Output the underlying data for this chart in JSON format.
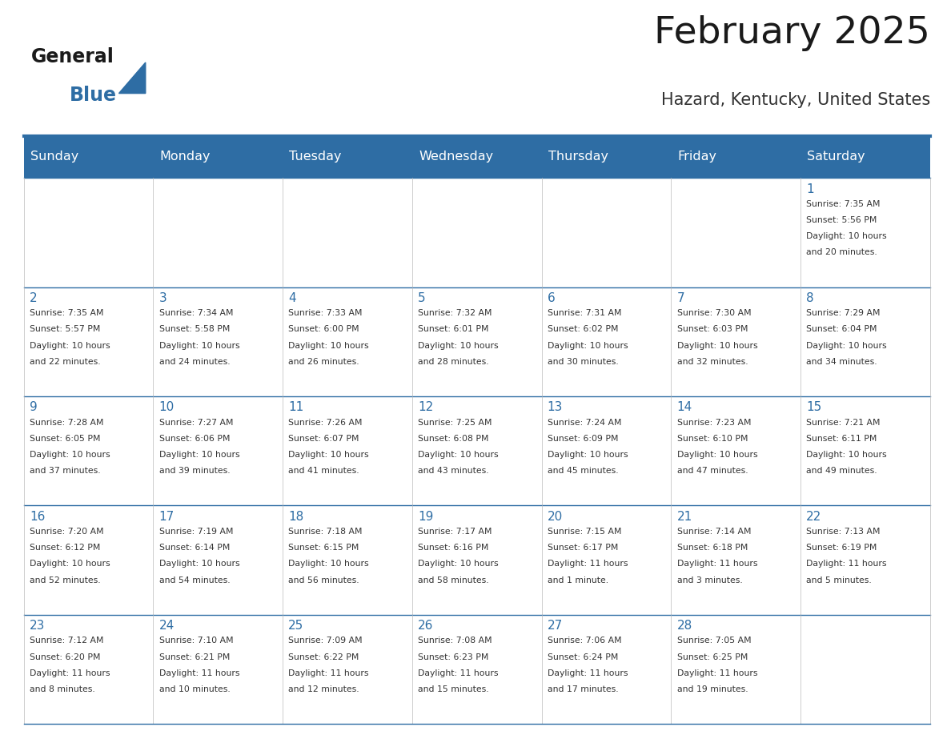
{
  "title": "February 2025",
  "subtitle": "Hazard, Kentucky, United States",
  "header_bg": "#2E6DA4",
  "header_text_color": "#FFFFFF",
  "day_number_color": "#2E6DA4",
  "text_color": "#333333",
  "border_color": "#2E6DA4",
  "days_of_week": [
    "Sunday",
    "Monday",
    "Tuesday",
    "Wednesday",
    "Thursday",
    "Friday",
    "Saturday"
  ],
  "weeks": [
    [
      {
        "day": "",
        "info": ""
      },
      {
        "day": "",
        "info": ""
      },
      {
        "day": "",
        "info": ""
      },
      {
        "day": "",
        "info": ""
      },
      {
        "day": "",
        "info": ""
      },
      {
        "day": "",
        "info": ""
      },
      {
        "day": "1",
        "info": "Sunrise: 7:35 AM\nSunset: 5:56 PM\nDaylight: 10 hours\nand 20 minutes."
      }
    ],
    [
      {
        "day": "2",
        "info": "Sunrise: 7:35 AM\nSunset: 5:57 PM\nDaylight: 10 hours\nand 22 minutes."
      },
      {
        "day": "3",
        "info": "Sunrise: 7:34 AM\nSunset: 5:58 PM\nDaylight: 10 hours\nand 24 minutes."
      },
      {
        "day": "4",
        "info": "Sunrise: 7:33 AM\nSunset: 6:00 PM\nDaylight: 10 hours\nand 26 minutes."
      },
      {
        "day": "5",
        "info": "Sunrise: 7:32 AM\nSunset: 6:01 PM\nDaylight: 10 hours\nand 28 minutes."
      },
      {
        "day": "6",
        "info": "Sunrise: 7:31 AM\nSunset: 6:02 PM\nDaylight: 10 hours\nand 30 minutes."
      },
      {
        "day": "7",
        "info": "Sunrise: 7:30 AM\nSunset: 6:03 PM\nDaylight: 10 hours\nand 32 minutes."
      },
      {
        "day": "8",
        "info": "Sunrise: 7:29 AM\nSunset: 6:04 PM\nDaylight: 10 hours\nand 34 minutes."
      }
    ],
    [
      {
        "day": "9",
        "info": "Sunrise: 7:28 AM\nSunset: 6:05 PM\nDaylight: 10 hours\nand 37 minutes."
      },
      {
        "day": "10",
        "info": "Sunrise: 7:27 AM\nSunset: 6:06 PM\nDaylight: 10 hours\nand 39 minutes."
      },
      {
        "day": "11",
        "info": "Sunrise: 7:26 AM\nSunset: 6:07 PM\nDaylight: 10 hours\nand 41 minutes."
      },
      {
        "day": "12",
        "info": "Sunrise: 7:25 AM\nSunset: 6:08 PM\nDaylight: 10 hours\nand 43 minutes."
      },
      {
        "day": "13",
        "info": "Sunrise: 7:24 AM\nSunset: 6:09 PM\nDaylight: 10 hours\nand 45 minutes."
      },
      {
        "day": "14",
        "info": "Sunrise: 7:23 AM\nSunset: 6:10 PM\nDaylight: 10 hours\nand 47 minutes."
      },
      {
        "day": "15",
        "info": "Sunrise: 7:21 AM\nSunset: 6:11 PM\nDaylight: 10 hours\nand 49 minutes."
      }
    ],
    [
      {
        "day": "16",
        "info": "Sunrise: 7:20 AM\nSunset: 6:12 PM\nDaylight: 10 hours\nand 52 minutes."
      },
      {
        "day": "17",
        "info": "Sunrise: 7:19 AM\nSunset: 6:14 PM\nDaylight: 10 hours\nand 54 minutes."
      },
      {
        "day": "18",
        "info": "Sunrise: 7:18 AM\nSunset: 6:15 PM\nDaylight: 10 hours\nand 56 minutes."
      },
      {
        "day": "19",
        "info": "Sunrise: 7:17 AM\nSunset: 6:16 PM\nDaylight: 10 hours\nand 58 minutes."
      },
      {
        "day": "20",
        "info": "Sunrise: 7:15 AM\nSunset: 6:17 PM\nDaylight: 11 hours\nand 1 minute."
      },
      {
        "day": "21",
        "info": "Sunrise: 7:14 AM\nSunset: 6:18 PM\nDaylight: 11 hours\nand 3 minutes."
      },
      {
        "day": "22",
        "info": "Sunrise: 7:13 AM\nSunset: 6:19 PM\nDaylight: 11 hours\nand 5 minutes."
      }
    ],
    [
      {
        "day": "23",
        "info": "Sunrise: 7:12 AM\nSunset: 6:20 PM\nDaylight: 11 hours\nand 8 minutes."
      },
      {
        "day": "24",
        "info": "Sunrise: 7:10 AM\nSunset: 6:21 PM\nDaylight: 11 hours\nand 10 minutes."
      },
      {
        "day": "25",
        "info": "Sunrise: 7:09 AM\nSunset: 6:22 PM\nDaylight: 11 hours\nand 12 minutes."
      },
      {
        "day": "26",
        "info": "Sunrise: 7:08 AM\nSunset: 6:23 PM\nDaylight: 11 hours\nand 15 minutes."
      },
      {
        "day": "27",
        "info": "Sunrise: 7:06 AM\nSunset: 6:24 PM\nDaylight: 11 hours\nand 17 minutes."
      },
      {
        "day": "28",
        "info": "Sunrise: 7:05 AM\nSunset: 6:25 PM\nDaylight: 11 hours\nand 19 minutes."
      },
      {
        "day": "",
        "info": ""
      }
    ]
  ]
}
